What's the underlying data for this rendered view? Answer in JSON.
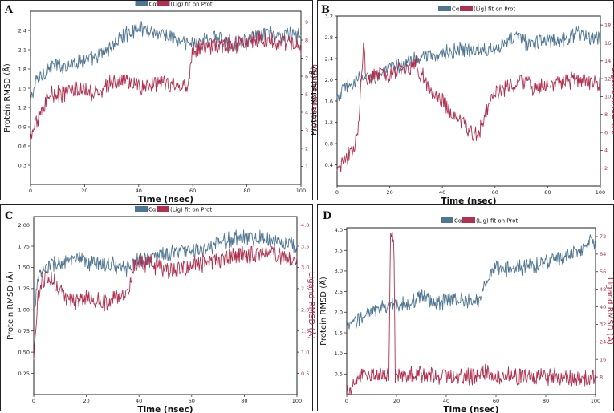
{
  "figure": {
    "colors": {
      "protein": "#4e7592",
      "ligand": "#b0304f",
      "frame": "#222222"
    }
  },
  "chart_data": [
    {
      "panel": "A",
      "type": "line",
      "legend": {
        "protein_label": "Cα",
        "ligand_label": "(Lig) fit on Prot",
        "placement": "top-center"
      },
      "xlabel": "Time (nsec)",
      "ylabel": "Protein RMSD (Å)",
      "ylabel_right": "Ligand RMSD (Å)",
      "xlim": [
        0,
        100
      ],
      "ylim": [
        0,
        2.7
      ],
      "ylim_right": [
        0,
        9.6
      ],
      "xticks": [
        "0",
        "20",
        "40",
        "60",
        "80",
        "100"
      ],
      "yticks": [
        "0.3",
        "0.6",
        "0.9",
        "1.2",
        "1.5",
        "1.8",
        "2.1",
        "2.4"
      ],
      "yticks_right": [
        "1",
        "2",
        "3",
        "4",
        "5",
        "6",
        "7",
        "8",
        "9"
      ],
      "series": [
        {
          "name": "Cα",
          "axis": "left",
          "x": [
            0,
            2,
            5,
            8,
            12,
            16,
            20,
            24,
            28,
            30,
            34,
            38,
            40,
            44,
            48,
            52,
            56,
            60,
            64,
            68,
            72,
            76,
            80,
            84,
            88,
            92,
            96,
            100
          ],
          "values": [
            1.3,
            1.6,
            1.75,
            1.85,
            1.85,
            1.9,
            1.95,
            1.95,
            2.1,
            2.15,
            2.3,
            2.4,
            2.45,
            2.4,
            2.35,
            2.3,
            2.2,
            2.2,
            2.25,
            2.3,
            2.2,
            2.2,
            2.25,
            2.3,
            2.35,
            2.3,
            2.35,
            2.3
          ]
        },
        {
          "name": "(Lig) fit on Prot",
          "axis": "right",
          "x": [
            0,
            2,
            4,
            6,
            8,
            12,
            16,
            20,
            24,
            28,
            30,
            34,
            38,
            42,
            46,
            50,
            54,
            58,
            60,
            64,
            68,
            72,
            76,
            80,
            84,
            88,
            92,
            96,
            100
          ],
          "values": [
            2.5,
            3.5,
            3.8,
            4.8,
            5.0,
            5.0,
            5.3,
            5.1,
            5.0,
            5.4,
            5.6,
            5.8,
            5.6,
            5.4,
            5.5,
            5.6,
            5.4,
            5.5,
            7.5,
            7.6,
            7.7,
            7.7,
            7.8,
            7.9,
            8.0,
            8.1,
            7.9,
            7.8,
            7.7
          ]
        }
      ]
    },
    {
      "panel": "B",
      "type": "line",
      "legend": {
        "protein_label": "Cα",
        "ligand_label": "(Lig) fit on Prot",
        "placement": "top-center"
      },
      "xlabel": "Time (nsec)",
      "ylabel": "Protein RMSD (Å)",
      "ylabel_right": "Ligand RMSD (Å)",
      "xlim": [
        0,
        100
      ],
      "ylim": [
        0,
        3.2
      ],
      "ylim_right": [
        0,
        19
      ],
      "xticks": [
        "0",
        "20",
        "40",
        "60",
        "80",
        "100"
      ],
      "yticks": [
        "0.4",
        "0.8",
        "1.2",
        "1.6",
        "2.0",
        "2.4",
        "2.8",
        "3.2"
      ],
      "yticks_right": [
        "2",
        "4",
        "6",
        "8",
        "10",
        "12",
        "14",
        "16",
        "18"
      ],
      "series": [
        {
          "name": "Cα",
          "axis": "left",
          "x": [
            0,
            2,
            5,
            8,
            12,
            16,
            20,
            25,
            30,
            35,
            40,
            45,
            50,
            55,
            60,
            65,
            68,
            72,
            76,
            80,
            84,
            88,
            91,
            94,
            97,
            100
          ],
          "values": [
            1.6,
            1.8,
            1.9,
            2.0,
            2.05,
            2.1,
            2.2,
            2.3,
            2.4,
            2.45,
            2.5,
            2.55,
            2.55,
            2.6,
            2.6,
            2.7,
            2.85,
            2.7,
            2.7,
            2.75,
            2.75,
            2.8,
            2.9,
            2.8,
            2.8,
            2.75
          ]
        },
        {
          "name": "(Lig) fit on Prot",
          "axis": "right",
          "x": [
            0,
            3,
            6,
            8,
            9,
            10,
            11,
            12,
            16,
            20,
            25,
            30,
            33,
            36,
            40,
            44,
            48,
            52,
            54,
            57,
            60,
            65,
            70,
            75,
            80,
            85,
            90,
            95,
            100
          ],
          "values": [
            2.0,
            3.0,
            4.0,
            6.0,
            11.0,
            16.0,
            12.0,
            12.0,
            12.5,
            12.5,
            13.0,
            13.5,
            12.0,
            10.5,
            9.5,
            8.0,
            7.0,
            5.5,
            6.0,
            8.5,
            10.5,
            11.0,
            11.5,
            11.0,
            11.5,
            11.5,
            12.0,
            11.5,
            11.5
          ]
        }
      ]
    },
    {
      "panel": "C",
      "type": "line",
      "legend": {
        "protein_label": "Cα",
        "ligand_label": "(Lig) fit on Prot",
        "placement": "top-center"
      },
      "xlabel": "Time (nsec)",
      "ylabel": "Protein RMSD (Å)",
      "ylabel_right": "Ligand RMSD (Å)",
      "xlim": [
        0,
        100
      ],
      "ylim": [
        0,
        2.1
      ],
      "ylim_right": [
        0,
        4.2
      ],
      "xticks": [
        "0",
        "20",
        "40",
        "60",
        "80",
        "100"
      ],
      "yticks": [
        "0.25",
        "0.50",
        "0.75",
        "1.00",
        "1.25",
        "1.50",
        "1.75",
        "2.00"
      ],
      "yticks_right": [
        "0.5",
        "1.0",
        "1.5",
        "2.0",
        "2.5",
        "3.0",
        "3.5",
        "4.0"
      ],
      "series": [
        {
          "name": "Cα",
          "axis": "left",
          "x": [
            0,
            2,
            5,
            8,
            12,
            16,
            20,
            24,
            28,
            32,
            36,
            40,
            44,
            48,
            52,
            56,
            60,
            64,
            68,
            72,
            76,
            80,
            84,
            88,
            92,
            96,
            100
          ],
          "values": [
            1.0,
            1.4,
            1.5,
            1.55,
            1.55,
            1.6,
            1.55,
            1.55,
            1.55,
            1.5,
            1.5,
            1.6,
            1.6,
            1.65,
            1.65,
            1.7,
            1.7,
            1.7,
            1.75,
            1.8,
            1.85,
            1.85,
            1.85,
            1.85,
            1.8,
            1.8,
            1.75
          ]
        },
        {
          "name": "(Lig) fit on Prot",
          "axis": "right",
          "x": [
            0,
            2,
            5,
            8,
            12,
            16,
            20,
            24,
            28,
            32,
            36,
            38,
            40,
            44,
            48,
            52,
            56,
            60,
            64,
            68,
            72,
            76,
            80,
            84,
            88,
            92,
            96,
            100
          ],
          "values": [
            1.0,
            2.5,
            2.8,
            2.6,
            2.3,
            2.2,
            2.3,
            2.2,
            2.2,
            2.3,
            2.4,
            3.0,
            3.1,
            3.1,
            3.0,
            2.9,
            3.0,
            3.0,
            3.1,
            3.1,
            3.2,
            3.3,
            3.3,
            3.3,
            3.4,
            3.3,
            3.2,
            3.2
          ]
        }
      ]
    },
    {
      "panel": "D",
      "type": "line",
      "legend": {
        "protein_label": "Cα",
        "ligand_label": "(Lig) fit on Prot",
        "placement": "top-center"
      },
      "xlabel": "Time (nsec)",
      "ylabel": "Protein RMSD (Å)",
      "ylabel_right": "Ligand RMSD (Å)",
      "xlim": [
        0,
        100
      ],
      "ylim": [
        0,
        4.05
      ],
      "ylim_right": [
        0,
        76
      ],
      "xticks": [
        "0",
        "20",
        "40",
        "60",
        "80",
        "100"
      ],
      "yticks": [
        "0.5",
        "1.0",
        "1.5",
        "2.0",
        "2.5",
        "3.0",
        "3.5",
        "4.0"
      ],
      "yticks_right": [
        "8",
        "16",
        "24",
        "32",
        "40",
        "48",
        "56",
        "64",
        "72"
      ],
      "series": [
        {
          "name": "Cα",
          "axis": "left",
          "x": [
            0,
            2,
            5,
            8,
            12,
            16,
            20,
            24,
            28,
            30,
            34,
            38,
            42,
            46,
            50,
            54,
            56,
            60,
            64,
            68,
            72,
            76,
            80,
            84,
            88,
            92,
            96,
            98,
            100
          ],
          "values": [
            1.6,
            1.7,
            1.85,
            1.95,
            2.05,
            2.15,
            2.2,
            2.2,
            2.3,
            2.45,
            2.25,
            2.25,
            2.3,
            2.35,
            2.25,
            2.3,
            2.8,
            3.1,
            3.05,
            3.05,
            3.1,
            3.15,
            3.2,
            3.3,
            3.35,
            3.45,
            3.55,
            3.75,
            3.6
          ]
        },
        {
          "name": "(Lig) fit on Prot",
          "axis": "right",
          "x": [
            0,
            2,
            4,
            6,
            10,
            14,
            17,
            17.5,
            18.5,
            19,
            19.5,
            22,
            26,
            30,
            40,
            50,
            55,
            58,
            62,
            70,
            80,
            90,
            100
          ],
          "values": [
            1.5,
            3.0,
            6.0,
            9.0,
            9.0,
            8.8,
            9.0,
            71.0,
            72.0,
            70.0,
            9.0,
            8.6,
            8.8,
            8.6,
            8.5,
            8.4,
            10.0,
            8.5,
            8.3,
            8.2,
            8.0,
            8.0,
            7.8
          ]
        }
      ]
    }
  ]
}
